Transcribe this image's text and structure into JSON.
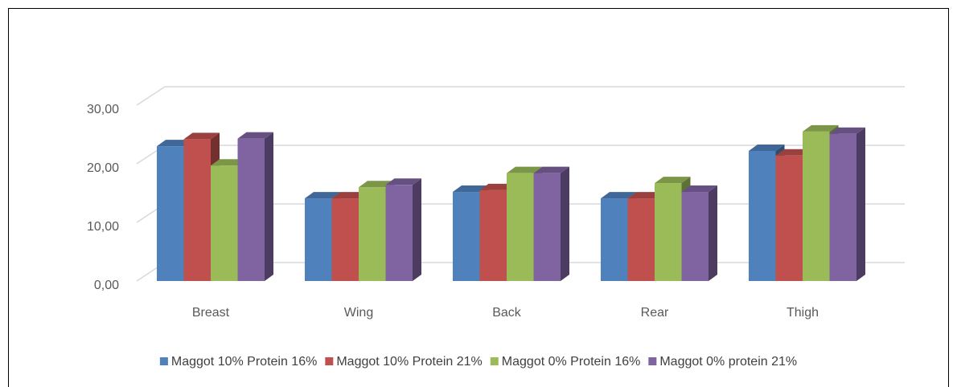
{
  "chart_data": {
    "type": "bar3d",
    "categories": [
      "Breast",
      "Wing",
      "Back",
      "Rear",
      "Thigh"
    ],
    "series": [
      {
        "name": "Maggot 10% Protein 16%",
        "color": "#4f81bd",
        "values": [
          23.0,
          14.1,
          15.2,
          14.1,
          22.2
        ]
      },
      {
        "name": "Maggot 10% Protein 21%",
        "color": "#c0504d",
        "values": [
          24.2,
          14.1,
          15.5,
          14.1,
          21.4
        ]
      },
      {
        "name": "Maggot 0% Protein 16%",
        "color": "#9bbb59",
        "values": [
          19.7,
          16.0,
          18.4,
          16.7,
          25.5
        ]
      },
      {
        "name": "Maggot 0% protein 21%",
        "color": "#8064a2",
        "values": [
          24.3,
          16.4,
          18.4,
          15.2,
          25.1
        ]
      }
    ],
    "ylim": [
      0,
      30
    ],
    "yticks": [
      {
        "value": 0,
        "label": "0,00"
      },
      {
        "value": 10,
        "label": "10,00"
      },
      {
        "value": 20,
        "label": "20,00"
      },
      {
        "value": 30,
        "label": "30,00"
      }
    ],
    "grid": true,
    "legend": "bottom"
  }
}
